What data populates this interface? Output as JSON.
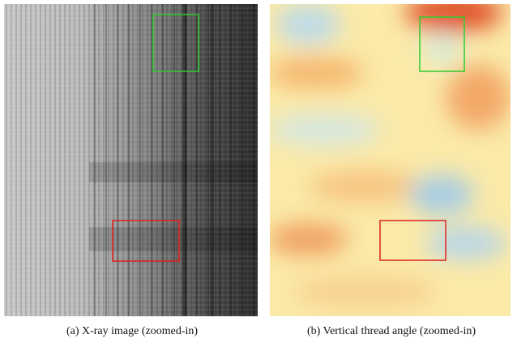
{
  "panels": [
    {
      "caption": "(a) X-ray image (zoomed-in)"
    },
    {
      "caption": "(b) Vertical thread angle (zoomed-in)"
    }
  ]
}
